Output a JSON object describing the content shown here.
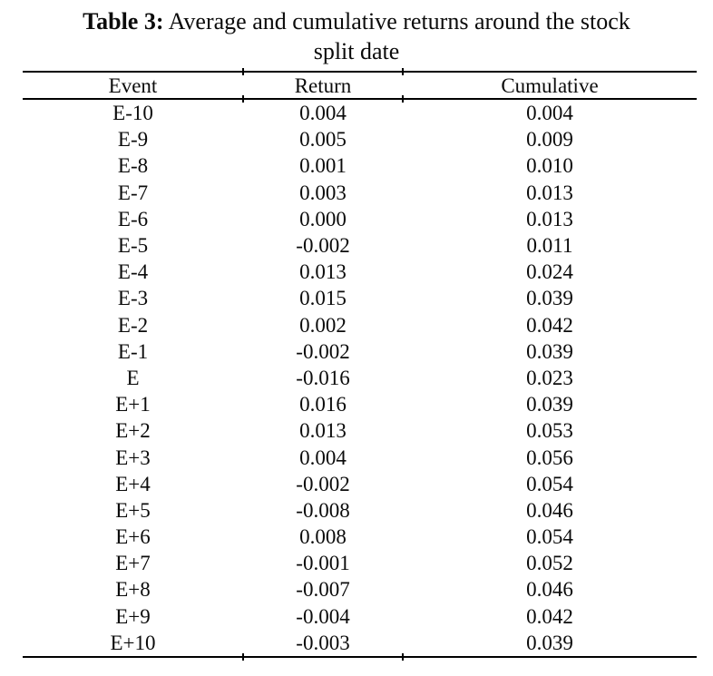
{
  "caption": {
    "label_bold": "Table 3:",
    "title_rest": " Average and cumulative returns around the stock",
    "title_line2": "split date"
  },
  "table": {
    "columns": [
      "Event",
      "Return",
      "Cumulative"
    ],
    "rows": [
      {
        "event": "E-10",
        "return": "0.004",
        "cumulative": "0.004"
      },
      {
        "event": "E-9",
        "return": "0.005",
        "cumulative": "0.009"
      },
      {
        "event": "E-8",
        "return": "0.001",
        "cumulative": "0.010"
      },
      {
        "event": "E-7",
        "return": "0.003",
        "cumulative": "0.013"
      },
      {
        "event": "E-6",
        "return": "0.000",
        "cumulative": "0.013"
      },
      {
        "event": "E-5",
        "return": "-0.002",
        "cumulative": "0.011"
      },
      {
        "event": "E-4",
        "return": "0.013",
        "cumulative": "0.024"
      },
      {
        "event": "E-3",
        "return": "0.015",
        "cumulative": "0.039"
      },
      {
        "event": "E-2",
        "return": "0.002",
        "cumulative": "0.042"
      },
      {
        "event": "E-1",
        "return": "-0.002",
        "cumulative": "0.039"
      },
      {
        "event": "E",
        "return": "-0.016",
        "cumulative": "0.023"
      },
      {
        "event": "E+1",
        "return": "0.016",
        "cumulative": "0.039"
      },
      {
        "event": "E+2",
        "return": "0.013",
        "cumulative": "0.053"
      },
      {
        "event": "E+3",
        "return": "0.004",
        "cumulative": "0.056"
      },
      {
        "event": "E+4",
        "return": "-0.002",
        "cumulative": "0.054"
      },
      {
        "event": "E+5",
        "return": "-0.008",
        "cumulative": "0.046"
      },
      {
        "event": "E+6",
        "return": "0.008",
        "cumulative": "0.054"
      },
      {
        "event": "E+7",
        "return": "-0.001",
        "cumulative": "0.052"
      },
      {
        "event": "E+8",
        "return": "-0.007",
        "cumulative": "0.046"
      },
      {
        "event": "E+9",
        "return": "-0.004",
        "cumulative": "0.042"
      },
      {
        "event": "E+10",
        "return": "-0.003",
        "cumulative": "0.039"
      }
    ]
  },
  "chart_data": {
    "type": "table",
    "title": "Table 3: Average and cumulative returns around the stock split date",
    "columns": [
      "Event",
      "Return",
      "Cumulative"
    ],
    "events": [
      "E-10",
      "E-9",
      "E-8",
      "E-7",
      "E-6",
      "E-5",
      "E-4",
      "E-3",
      "E-2",
      "E-1",
      "E",
      "E+1",
      "E+2",
      "E+3",
      "E+4",
      "E+5",
      "E+6",
      "E+7",
      "E+8",
      "E+9",
      "E+10"
    ],
    "returns": [
      0.004,
      0.005,
      0.001,
      0.003,
      0.0,
      -0.002,
      0.013,
      0.015,
      0.002,
      -0.002,
      -0.016,
      0.016,
      0.013,
      0.004,
      -0.002,
      -0.008,
      0.008,
      -0.001,
      -0.007,
      -0.004,
      -0.003
    ],
    "cumulative": [
      0.004,
      0.009,
      0.01,
      0.013,
      0.013,
      0.011,
      0.024,
      0.039,
      0.042,
      0.039,
      0.023,
      0.039,
      0.053,
      0.056,
      0.054,
      0.046,
      0.054,
      0.052,
      0.046,
      0.042,
      0.039
    ]
  },
  "colors": {
    "background": "#ffffff",
    "text": "#0b0b0b",
    "rule": "#000000"
  }
}
